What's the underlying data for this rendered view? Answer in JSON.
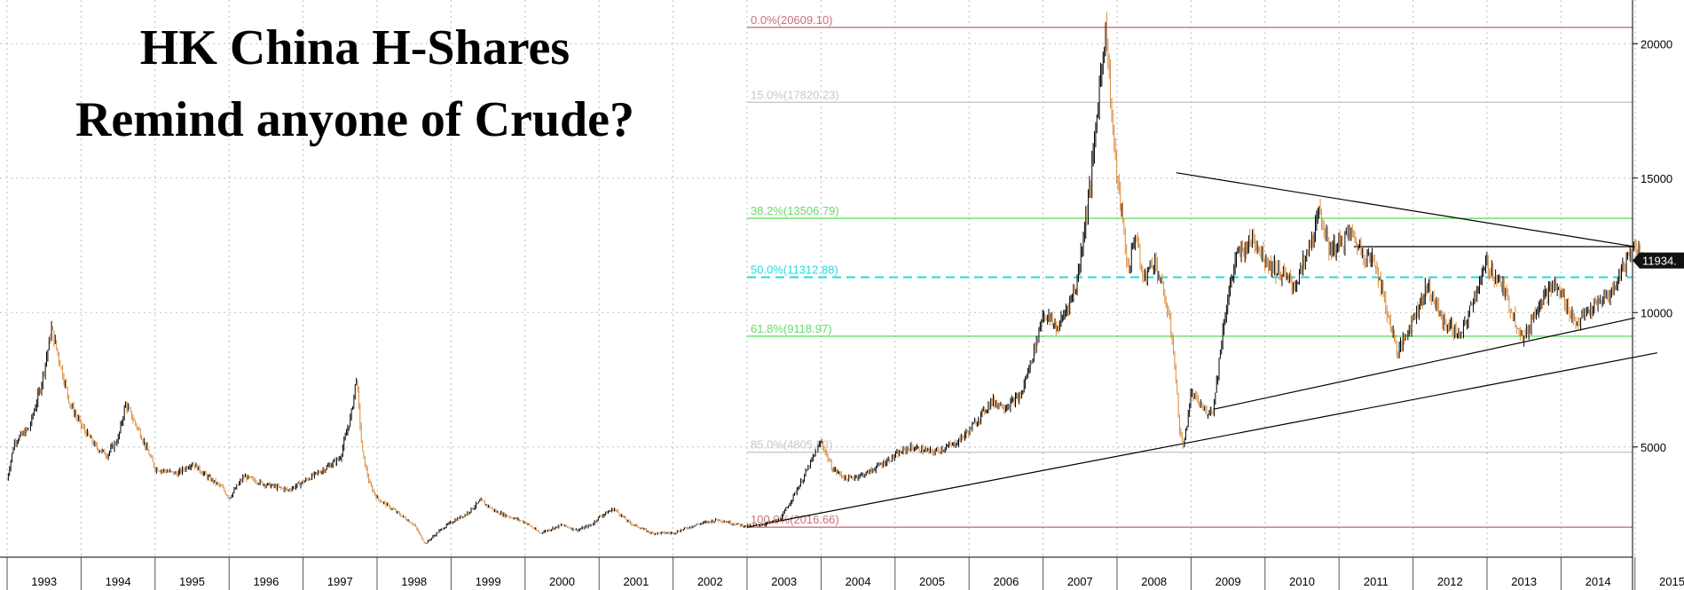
{
  "title_lines": [
    "HK China H-Shares",
    "Remind anyone of Crude?"
  ],
  "colors": {
    "up": "#000000",
    "down": "#d98a3d",
    "fib_red": "#c9707a",
    "fib_green": "#66dd66",
    "fib_gray": "#c8c8c8",
    "fib_cyan": "#22dddd",
    "grid": "#bdbdbd",
    "last_price_box": "#111111"
  },
  "chart_data": {
    "type": "line",
    "x_labels": [
      "1993",
      "1994",
      "1995",
      "1996",
      "1997",
      "1998",
      "1999",
      "2000",
      "2001",
      "2002",
      "2003",
      "2004",
      "2005",
      "2006",
      "2007",
      "2008",
      "2009",
      "2010",
      "2011",
      "2012",
      "2013",
      "2014",
      "2015"
    ],
    "y_ticks": [
      5000,
      10000,
      15000,
      20000
    ],
    "ylim": [
      900,
      21400
    ],
    "xlim": [
      1993.0,
      2015.4
    ],
    "grid": true,
    "last_price": "11934.",
    "series": [
      {
        "values": [
          [
            1993.0,
            3800
          ],
          [
            1993.1,
            5200
          ],
          [
            1993.3,
            5700
          ],
          [
            1993.45,
            7200
          ],
          [
            1993.55,
            8600
          ],
          [
            1993.6,
            9400
          ],
          [
            1993.7,
            8300
          ],
          [
            1993.85,
            6600
          ],
          [
            1994.0,
            5800
          ],
          [
            1994.2,
            5000
          ],
          [
            1994.35,
            4700
          ],
          [
            1994.5,
            5300
          ],
          [
            1994.6,
            6600
          ],
          [
            1994.8,
            5500
          ],
          [
            1995.0,
            4200
          ],
          [
            1995.3,
            4000
          ],
          [
            1995.5,
            4400
          ],
          [
            1995.7,
            3900
          ],
          [
            1995.9,
            3500
          ],
          [
            1996.0,
            3100
          ],
          [
            1996.2,
            3900
          ],
          [
            1996.5,
            3600
          ],
          [
            1996.8,
            3400
          ],
          [
            1997.0,
            3700
          ],
          [
            1997.3,
            4200
          ],
          [
            1997.5,
            4600
          ],
          [
            1997.65,
            6200
          ],
          [
            1997.72,
            7600
          ],
          [
            1997.8,
            4800
          ],
          [
            1997.9,
            3600
          ],
          [
            1998.0,
            3100
          ],
          [
            1998.3,
            2500
          ],
          [
            1998.5,
            2100
          ],
          [
            1998.65,
            1400
          ],
          [
            1998.85,
            1900
          ],
          [
            1999.0,
            2200
          ],
          [
            1999.2,
            2500
          ],
          [
            1999.4,
            3000
          ],
          [
            1999.6,
            2600
          ],
          [
            1999.8,
            2400
          ],
          [
            2000.0,
            2200
          ],
          [
            2000.2,
            1800
          ],
          [
            2000.5,
            2100
          ],
          [
            2000.7,
            1900
          ],
          [
            2000.9,
            2100
          ],
          [
            2001.0,
            2400
          ],
          [
            2001.2,
            2700
          ],
          [
            2001.4,
            2200
          ],
          [
            2001.7,
            1800
          ],
          [
            2002.0,
            1800
          ],
          [
            2002.3,
            2100
          ],
          [
            2002.6,
            2300
          ],
          [
            2002.9,
            2100
          ],
          [
            2003.0,
            2050
          ],
          [
            2003.2,
            2100
          ],
          [
            2003.45,
            2300
          ],
          [
            2003.75,
            3800
          ],
          [
            2004.0,
            5200
          ],
          [
            2004.15,
            4200
          ],
          [
            2004.35,
            3800
          ],
          [
            2004.6,
            4000
          ],
          [
            2004.9,
            4500
          ],
          [
            2005.2,
            5000
          ],
          [
            2005.5,
            4800
          ],
          [
            2005.8,
            5100
          ],
          [
            2006.0,
            5600
          ],
          [
            2006.3,
            6700
          ],
          [
            2006.5,
            6500
          ],
          [
            2006.7,
            6900
          ],
          [
            2006.9,
            8800
          ],
          [
            2007.0,
            10000
          ],
          [
            2007.2,
            9400
          ],
          [
            2007.45,
            11000
          ],
          [
            2007.65,
            15000
          ],
          [
            2007.8,
            19500
          ],
          [
            2007.85,
            20600
          ],
          [
            2007.95,
            16500
          ],
          [
            2008.0,
            15000
          ],
          [
            2008.05,
            14000
          ],
          [
            2008.15,
            11500
          ],
          [
            2008.25,
            13000
          ],
          [
            2008.35,
            11200
          ],
          [
            2008.5,
            12000
          ],
          [
            2008.65,
            10500
          ],
          [
            2008.75,
            9000
          ],
          [
            2008.85,
            5500
          ],
          [
            2008.9,
            5000
          ],
          [
            2009.0,
            7000
          ],
          [
            2009.2,
            6300
          ],
          [
            2009.3,
            6400
          ],
          [
            2009.45,
            9800
          ],
          [
            2009.6,
            12000
          ],
          [
            2009.85,
            12800
          ],
          [
            2010.0,
            12000
          ],
          [
            2010.15,
            11600
          ],
          [
            2010.4,
            11000
          ],
          [
            2010.55,
            12000
          ],
          [
            2010.75,
            13800
          ],
          [
            2010.85,
            12400
          ],
          [
            2011.0,
            12500
          ],
          [
            2011.15,
            13000
          ],
          [
            2011.3,
            12300
          ],
          [
            2011.5,
            11800
          ],
          [
            2011.65,
            10000
          ],
          [
            2011.8,
            8500
          ],
          [
            2012.0,
            9800
          ],
          [
            2012.2,
            11000
          ],
          [
            2012.4,
            9700
          ],
          [
            2012.65,
            9100
          ],
          [
            2012.85,
            10800
          ],
          [
            2013.0,
            11800
          ],
          [
            2013.2,
            11000
          ],
          [
            2013.4,
            9600
          ],
          [
            2013.5,
            9000
          ],
          [
            2013.7,
            10400
          ],
          [
            2013.9,
            11000
          ],
          [
            2014.0,
            10700
          ],
          [
            2014.2,
            9600
          ],
          [
            2014.45,
            10200
          ],
          [
            2014.7,
            10800
          ],
          [
            2014.85,
            11800
          ],
          [
            2015.0,
            12500
          ],
          [
            2015.1,
            11934
          ]
        ]
      }
    ],
    "fib_levels": [
      {
        "label": "0.0%(20609.10)",
        "value": 20609.1,
        "color": "fib_red"
      },
      {
        "label": "15.0%(17820.23)",
        "value": 17820.23,
        "color": "fib_gray"
      },
      {
        "label": "38.2%(13506.79)",
        "value": 13506.79,
        "color": "fib_green"
      },
      {
        "label": "50.0%(11312.88)",
        "value": 11312.88,
        "color": "fib_cyan",
        "dashed": true
      },
      {
        "label": "61.8%(9118.97)",
        "value": 9118.97,
        "color": "fib_green"
      },
      {
        "label": "85.0%(4805.53)",
        "value": 4805.53,
        "color": "fib_gray"
      },
      {
        "label": "100.0%(2016.66)",
        "value": 2016.66,
        "color": "fib_red"
      }
    ],
    "fib_start_x": 2003.0,
    "trendlines": [
      {
        "x1": 2003.0,
        "y1": 2016.66,
        "x2": 2015.3,
        "y2": 8500
      },
      {
        "x1": 2008.8,
        "y1": 15200,
        "x2": 2015.0,
        "y2": 12450
      },
      {
        "x1": 2011.2,
        "y1": 12450,
        "x2": 2015.0,
        "y2": 12450
      },
      {
        "x1": 2009.3,
        "y1": 6400,
        "x2": 2015.0,
        "y2": 9800
      }
    ]
  }
}
